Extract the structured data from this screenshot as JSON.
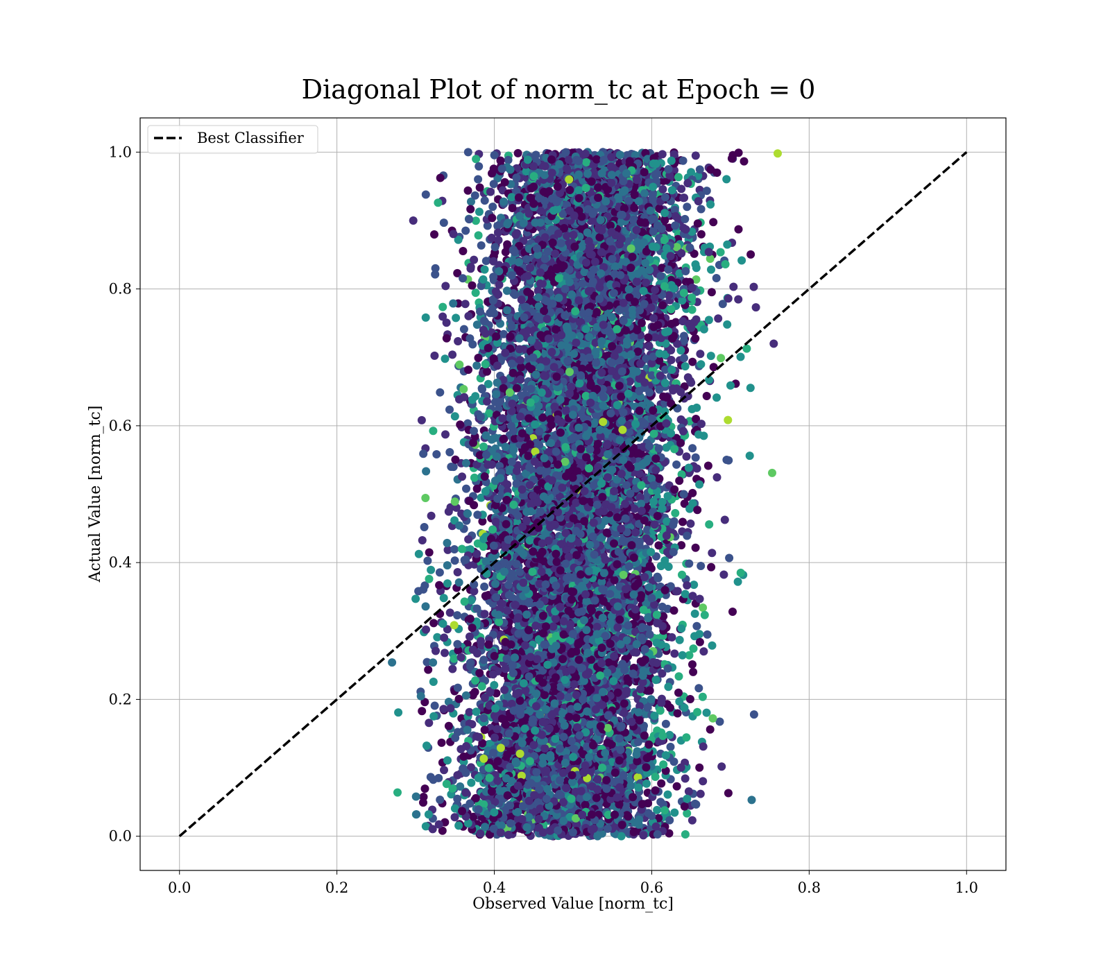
{
  "chart_data": {
    "type": "scatter",
    "title": "Diagonal Plot of norm_tc at Epoch = 0",
    "xlabel": "Observed Value [norm_tc]",
    "ylabel": "Actual Value [norm_tc]",
    "xlim": [
      -0.05,
      1.05
    ],
    "ylim": [
      -0.05,
      1.05
    ],
    "xticks": [
      "0.0",
      "0.2",
      "0.4",
      "0.6",
      "0.8",
      "1.0"
    ],
    "yticks": [
      "0.0",
      "0.2",
      "0.4",
      "0.6",
      "0.8",
      "1.0"
    ],
    "grid": true,
    "legend": {
      "placement": "upper-left",
      "entries": [
        "Best Classifier"
      ]
    },
    "colormap": "viridis",
    "colors": {
      "dark_purple": "#440154",
      "indigo": "#472d7b",
      "blue_purple": "#3b528b",
      "steel_blue": "#2c728e",
      "teal": "#21918c",
      "green_teal": "#28ae80",
      "green": "#5ec962",
      "yellow_green": "#addc30"
    },
    "reference_line": {
      "name": "Best Classifier",
      "x": [
        0.0,
        1.0
      ],
      "y": [
        0.0,
        1.0
      ],
      "style": "dashed",
      "color": "#000000"
    },
    "scatter_summary": {
      "x_range_dense": [
        0.38,
        0.63
      ],
      "x_range_full": [
        0.27,
        0.76
      ],
      "y_range": [
        0.0,
        1.0
      ]
    },
    "outlier_points": [
      {
        "x": 0.297,
        "y": 0.9
      },
      {
        "x": 0.313,
        "y": 0.938
      },
      {
        "x": 0.27,
        "y": 0.254
      },
      {
        "x": 0.278,
        "y": 0.181
      },
      {
        "x": 0.277,
        "y": 0.064
      },
      {
        "x": 0.753,
        "y": 0.531
      },
      {
        "x": 0.76,
        "y": 0.998
      },
      {
        "x": 0.755,
        "y": 0.72
      },
      {
        "x": 0.73,
        "y": 0.178
      },
      {
        "x": 0.727,
        "y": 0.053
      },
      {
        "x": 0.3,
        "y": 0.347
      },
      {
        "x": 0.713,
        "y": 0.385
      },
      {
        "x": 0.564,
        "y": 0.382
      },
      {
        "x": 0.495,
        "y": 0.96
      },
      {
        "x": 0.418,
        "y": 0.002
      }
    ]
  }
}
